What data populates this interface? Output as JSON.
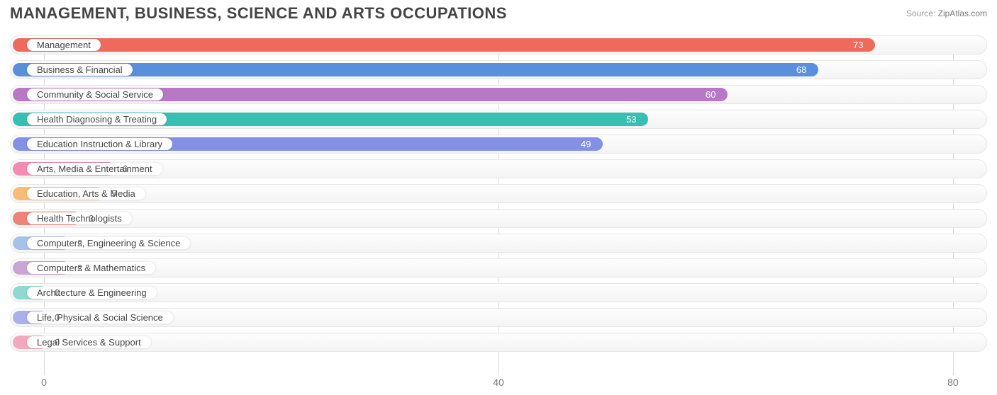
{
  "title": "MANAGEMENT, BUSINESS, SCIENCE AND ARTS OCCUPATIONS",
  "source_label": "Source:",
  "source_site": "ZipAtlas.com",
  "chart": {
    "type": "bar-horizontal",
    "xlim": [
      -3,
      83
    ],
    "xticks": [
      0,
      40,
      80
    ],
    "track_bg_top": "#fdfdfd",
    "track_bg_bottom": "#f4f4f4",
    "track_border": "#e6e6e6",
    "grid_color": "#d9d9d9",
    "label_fontsize": 13,
    "value_fontsize": 13,
    "tick_fontsize": 14,
    "title_fontsize": 22,
    "bar_origin": -3,
    "bars": [
      {
        "label": "Management",
        "value": 73,
        "color": "#ee6a5c",
        "value_color": "#ffffff",
        "value_inside": true
      },
      {
        "label": "Business & Financial",
        "value": 68,
        "color": "#5a8fdb",
        "value_color": "#ffffff",
        "value_inside": true
      },
      {
        "label": "Community & Social Service",
        "value": 60,
        "color": "#b779c6",
        "value_color": "#ffffff",
        "value_inside": true
      },
      {
        "label": "Health Diagnosing & Treating",
        "value": 53,
        "color": "#38bfb3",
        "value_color": "#ffffff",
        "value_inside": true
      },
      {
        "label": "Education Instruction & Library",
        "value": 49,
        "color": "#8490e6",
        "value_color": "#ffffff",
        "value_inside": true
      },
      {
        "label": "Arts, Media & Entertainment",
        "value": 6,
        "color": "#f18db0",
        "value_color": "#666666",
        "value_inside": false
      },
      {
        "label": "Education, Arts & Media",
        "value": 5,
        "color": "#f7bd76",
        "value_color": "#666666",
        "value_inside": false
      },
      {
        "label": "Health Technologists",
        "value": 3,
        "color": "#ee8377",
        "value_color": "#666666",
        "value_inside": false
      },
      {
        "label": "Computers, Engineering & Science",
        "value": 2,
        "color": "#a6c1ea",
        "value_color": "#666666",
        "value_inside": false
      },
      {
        "label": "Computers & Mathematics",
        "value": 2,
        "color": "#c9a6d6",
        "value_color": "#666666",
        "value_inside": false
      },
      {
        "label": "Architecture & Engineering",
        "value": 0,
        "color": "#8fd9d0",
        "value_color": "#666666",
        "value_inside": false
      },
      {
        "label": "Life, Physical & Social Science",
        "value": 0,
        "color": "#aab1ea",
        "value_color": "#666666",
        "value_inside": false
      },
      {
        "label": "Legal Services & Support",
        "value": 0,
        "color": "#f2a9c0",
        "value_color": "#666666",
        "value_inside": false
      }
    ]
  }
}
